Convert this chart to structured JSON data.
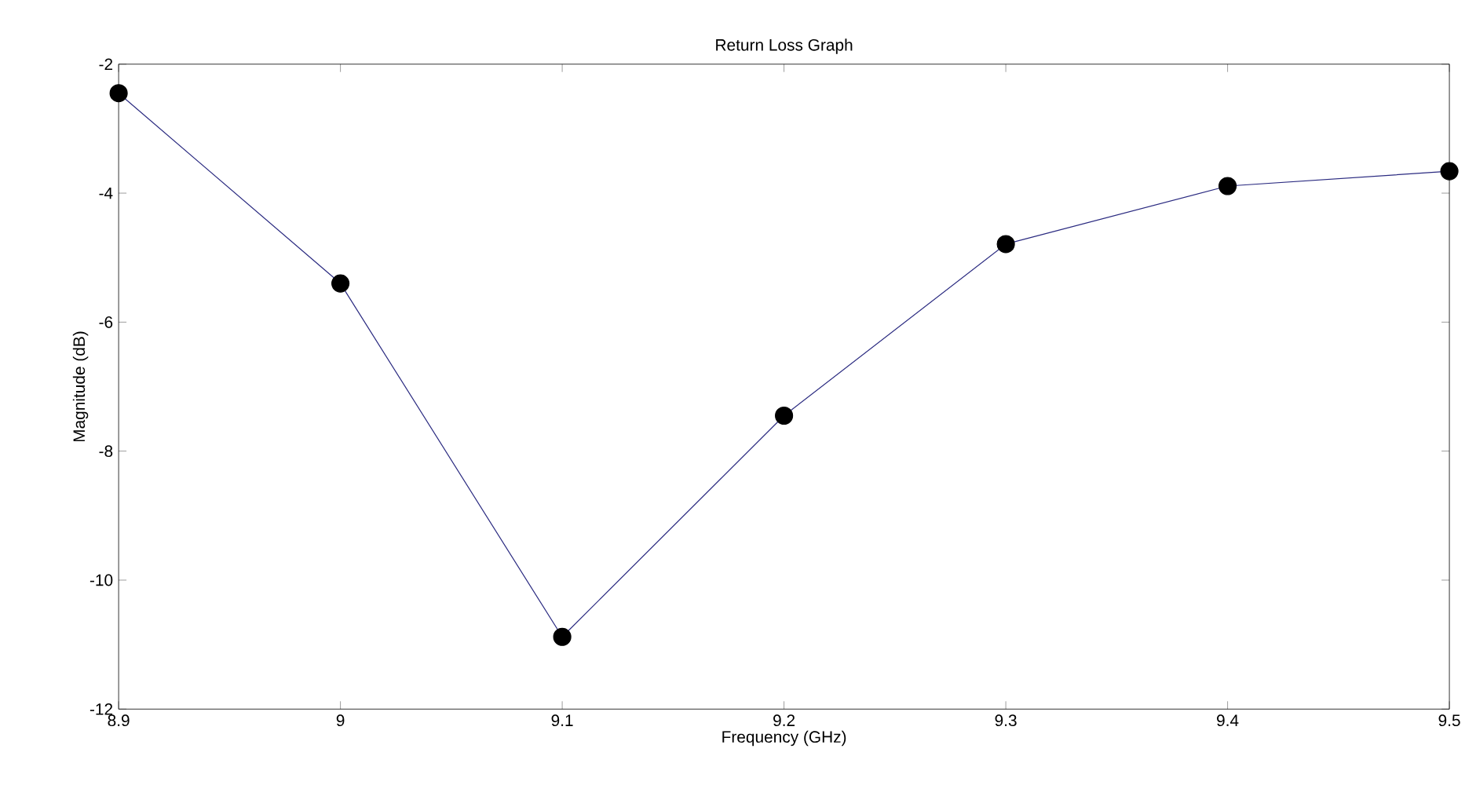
{
  "chart_data": {
    "type": "line",
    "title": "Return Loss Graph",
    "xlabel": "Frequency (GHz)",
    "ylabel": "Magnitude (dB)",
    "x": [
      8.9,
      9.0,
      9.1,
      9.2,
      9.3,
      9.4,
      9.5
    ],
    "series": [
      {
        "color": "#2a2a80",
        "values": [
          -2.45,
          -5.4,
          -10.88,
          -7.45,
          -4.79,
          -3.89,
          -3.66
        ]
      }
    ],
    "marker": "circle",
    "line_style": "solid",
    "xlim": [
      8.9,
      9.5
    ],
    "xticks": [
      8.9,
      9,
      9.1,
      9.2,
      9.3,
      9.4,
      9.5
    ],
    "ylim": [
      -12,
      -2
    ],
    "yticks": [
      -12,
      -10,
      -8,
      -6,
      -4,
      -2
    ],
    "grid": false
  }
}
